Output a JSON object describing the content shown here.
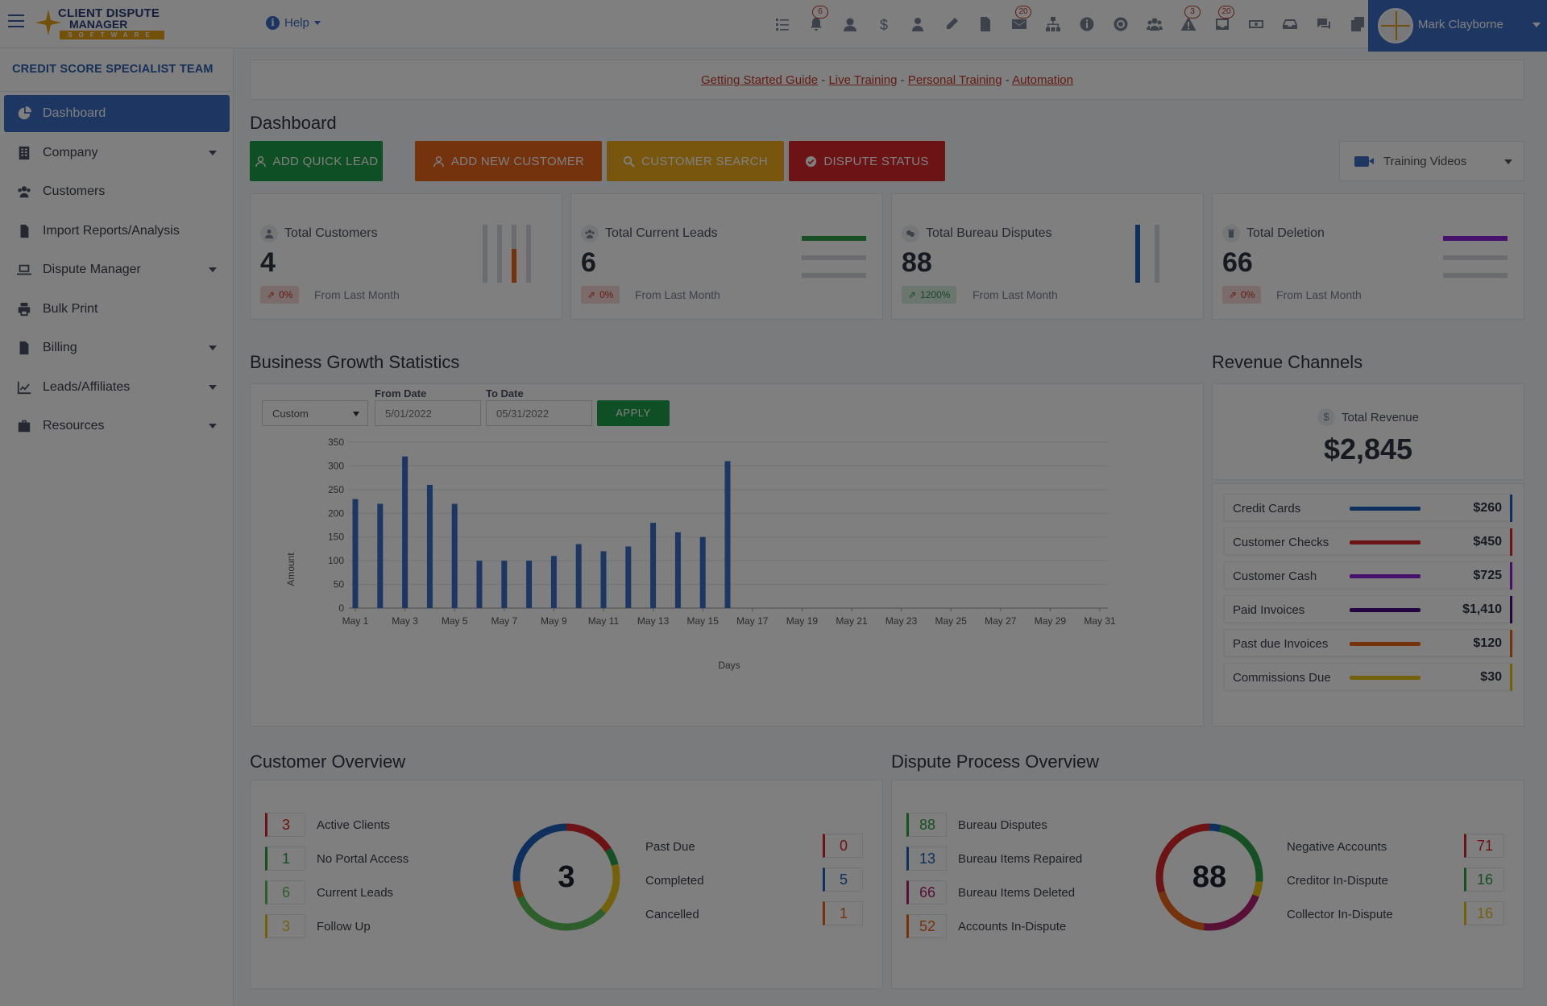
{
  "header": {
    "logo_line1": "CLIENT DISPUTE",
    "logo_line2": "MANAGER",
    "logo_line3": "SOFTWARE",
    "help_label": "Help",
    "badges": {
      "bell": "6",
      "mail": "20",
      "alert": "3",
      "inbox": "20"
    },
    "user_name": "Mark Clayborne"
  },
  "sidebar": {
    "team": "CREDIT SCORE SPECIALIST TEAM",
    "items": [
      {
        "label": "Dashboard",
        "icon": "dashboard-icon"
      },
      {
        "label": "Company",
        "icon": "building-icon"
      },
      {
        "label": "Customers",
        "icon": "users-icon"
      },
      {
        "label": "Import Reports/Analysis",
        "icon": "file-import-icon"
      },
      {
        "label": "Dispute Manager",
        "icon": "laptop-icon"
      },
      {
        "label": "Bulk Print",
        "icon": "print-icon"
      },
      {
        "label": "Billing",
        "icon": "invoice-icon"
      },
      {
        "label": "Leads/Affiliates",
        "icon": "chart-line-icon"
      },
      {
        "label": "Resources",
        "icon": "briefcase-icon"
      }
    ]
  },
  "links": {
    "getting_started": "Getting Started Guide",
    "live_training": "Live Training",
    "personal_training": "Personal Training",
    "automation": "Automation",
    "sep": "-"
  },
  "page_title": "Dashboard",
  "actions": {
    "add_quick_lead": "ADD QUICK LEAD",
    "add_new_customer": "ADD NEW CUSTOMER",
    "customer_search": "CUSTOMER SEARCH",
    "dispute_status": "DISPUTE STATUS",
    "training_videos": "Training Videos"
  },
  "stats": [
    {
      "label": "Total Customers",
      "value": "4",
      "change": "0%",
      "from": "From Last Month"
    },
    {
      "label": "Total Current Leads",
      "value": "6",
      "change": "0%",
      "from": "From Last Month"
    },
    {
      "label": "Total Bureau Disputes",
      "value": "88",
      "change": "1200%",
      "from": "From Last Month"
    },
    {
      "label": "Total Deletion",
      "value": "66",
      "change": "0%",
      "from": "From Last Month"
    }
  ],
  "growth": {
    "title": "Business Growth Statistics",
    "range_select": "Custom",
    "from_label": "From Date",
    "from_value": "5/01/2022",
    "to_label": "To Date",
    "to_value": "05/31/2022",
    "apply_label": "APPLY"
  },
  "chart_data": {
    "type": "bar",
    "xlabel": "Days",
    "ylabel": "Amount",
    "ylim": [
      0,
      350
    ],
    "yticks": [
      0,
      50,
      100,
      150,
      200,
      250,
      300,
      350
    ],
    "xticks": [
      "May 1",
      "May 3",
      "May 5",
      "May 7",
      "May 9",
      "May 11",
      "May 13",
      "May 15",
      "May 17",
      "May 19",
      "May 21",
      "May 23",
      "May 25",
      "May 27",
      "May 29",
      "May 31"
    ],
    "categories": [
      "May 1",
      "May 2",
      "May 3",
      "May 4",
      "May 5",
      "May 6",
      "May 7",
      "May 8",
      "May 9",
      "May 10",
      "May 11",
      "May 12",
      "May 13",
      "May 14",
      "May 15",
      "May 16",
      "May 17",
      "May 18",
      "May 19",
      "May 20",
      "May 21",
      "May 22",
      "May 23",
      "May 24",
      "May 25",
      "May 26",
      "May 27",
      "May 28",
      "May 29",
      "May 30",
      "May 31"
    ],
    "values": [
      230,
      220,
      320,
      260,
      220,
      100,
      100,
      100,
      110,
      135,
      120,
      130,
      180,
      160,
      150,
      310,
      0,
      0,
      0,
      0,
      0,
      0,
      0,
      0,
      0,
      0,
      0,
      0,
      0,
      0,
      0
    ],
    "grid": true,
    "colors": {
      "bar": "#3a6dc4"
    }
  },
  "revenue": {
    "title": "Revenue Channels",
    "total_label": "Total Revenue",
    "total_value": "$2,845",
    "items": [
      {
        "name": "Credit Cards",
        "amount": "$260",
        "color": "#1f5fb8"
      },
      {
        "name": "Customer Checks",
        "amount": "$450",
        "color": "#d7262b"
      },
      {
        "name": "Customer Cash",
        "amount": "$725",
        "color": "#8a22d6"
      },
      {
        "name": "Paid Invoices",
        "amount": "$1,410",
        "color": "#4b0a82"
      },
      {
        "name": "Past due Invoices",
        "amount": "$120",
        "color": "#e8651a"
      },
      {
        "name": "Commissions Due",
        "amount": "$30",
        "color": "#e8c21a"
      }
    ]
  },
  "customer_overview": {
    "title": "Customer Overview",
    "center_value": "3",
    "left": [
      {
        "value": "3",
        "label": "Active Clients",
        "color": "#d7262b"
      },
      {
        "value": "1",
        "label": "No Portal Access",
        "color": "#2e9e4a"
      },
      {
        "value": "6",
        "label": "Current Leads",
        "color": "#5dbd57"
      },
      {
        "value": "3",
        "label": "Follow Up",
        "color": "#e8c21a"
      }
    ],
    "right": [
      {
        "value": "0",
        "label": "Past Due",
        "color": "#d7262b"
      },
      {
        "value": "5",
        "label": "Completed",
        "color": "#1f5fb8"
      },
      {
        "value": "1",
        "label": "Cancelled",
        "color": "#e8651a"
      }
    ]
  },
  "dispute_overview": {
    "title": "Dispute Process Overview",
    "center_value": "88",
    "left": [
      {
        "value": "88",
        "label": "Bureau Disputes",
        "color": "#2e9e4a"
      },
      {
        "value": "13",
        "label": "Bureau Items Repaired",
        "color": "#1f5fb8"
      },
      {
        "value": "66",
        "label": "Bureau Items Deleted",
        "color": "#b0236d"
      },
      {
        "value": "52",
        "label": "Accounts In-Dispute",
        "color": "#e8651a"
      }
    ],
    "right": [
      {
        "value": "71",
        "label": "Negative Accounts",
        "color": "#d7262b"
      },
      {
        "value": "16",
        "label": "Creditor In-Dispute",
        "color": "#2e9e4a"
      },
      {
        "value": "16",
        "label": "Collector In-Dispute",
        "color": "#e8c21a"
      }
    ]
  }
}
